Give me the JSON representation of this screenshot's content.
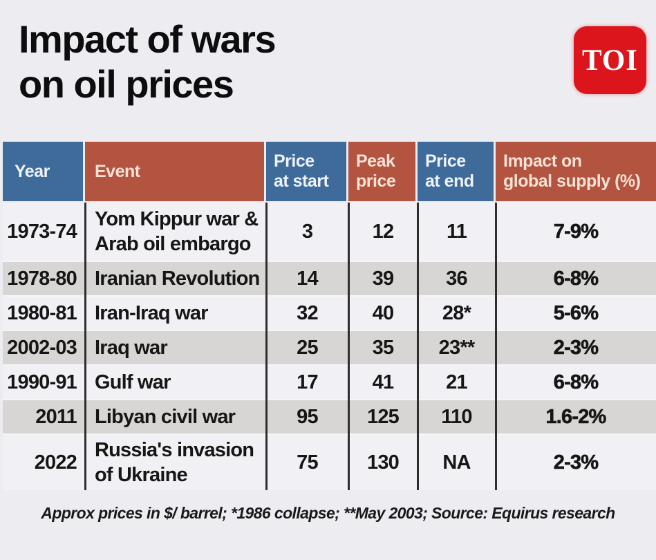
{
  "header": {
    "title": "Impact of wars\non oil prices",
    "logo_text": "TOI"
  },
  "chart_data": {
    "type": "table",
    "title": "Impact of wars on oil prices",
    "columns": [
      "Year",
      "Event",
      "Price\nat start",
      "Peak\nprice",
      "Price\nat end",
      "Impact on\nglobal supply (%)"
    ],
    "rows": [
      {
        "year": "1973-74",
        "event": "Yom Kippur war &\nArab oil embargo",
        "price_start": "3",
        "peak_price": "12",
        "price_end": "11",
        "impact": "7-9%"
      },
      {
        "year": "1978-80",
        "event": "Iranian Revolution",
        "price_start": "14",
        "peak_price": "39",
        "price_end": "36",
        "impact": "6-8%"
      },
      {
        "year": "1980-81",
        "event": "Iran-Iraq war",
        "price_start": "32",
        "peak_price": "40",
        "price_end": "28*",
        "impact": "5-6%"
      },
      {
        "year": "2002-03",
        "event": "Iraq war",
        "price_start": "25",
        "peak_price": "35",
        "price_end": "23**",
        "impact": "2-3%"
      },
      {
        "year": "1990-91",
        "event": "Gulf war",
        "price_start": "17",
        "peak_price": "41",
        "price_end": "21",
        "impact": "6-8%"
      },
      {
        "year": "2011",
        "event": "Libyan civil war",
        "price_start": "95",
        "peak_price": "125",
        "price_end": "110",
        "impact": "1.6-2%"
      },
      {
        "year": "2022",
        "event": "Russia's invasion\nof Ukraine",
        "price_start": "75",
        "peak_price": "130",
        "price_end": "NA",
        "impact": "2-3%"
      }
    ],
    "note": "Approx prices in $/ barrel; *1986 collapse; **May 2003; Source: Equirus research"
  },
  "colors": {
    "page_background": "#edecf1",
    "header_blue": "#3f6b9b",
    "header_red": "#b2543f",
    "row_grey": "#d7d6d4",
    "row_light": "#f1f0f4",
    "logo_red": "#dc141c",
    "body_text": "#161616"
  }
}
